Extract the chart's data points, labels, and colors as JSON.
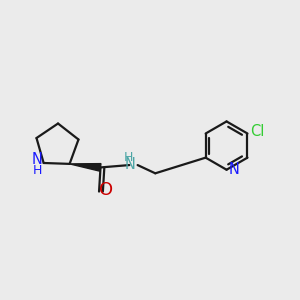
{
  "bg_color": "#ebebeb",
  "bond_color": "#1a1a1a",
  "bond_width": 1.6,
  "atom_colors": {
    "N": "#1a1aff",
    "O": "#cc0000",
    "NH": "#4da6a6",
    "Cl": "#33cc33"
  }
}
